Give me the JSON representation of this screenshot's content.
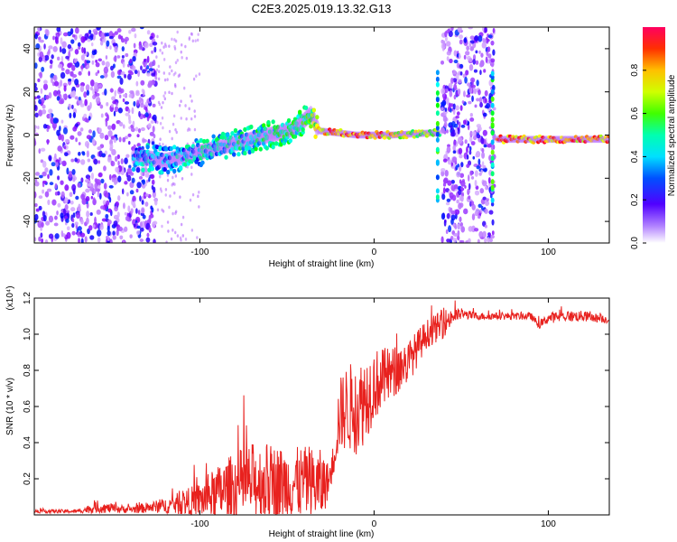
{
  "title": "C2E3.2025.019.13.32.G13",
  "colors": {
    "snr_line": "#e8211e",
    "spectral_low": "#7f00ff",
    "spectral_mid": "#00e0a0",
    "spectral_high": "#ff0030"
  },
  "chart_data": [
    {
      "type": "heatmap",
      "title": "C2E3.2025.019.13.32.G13",
      "xlabel": "Height of straight line (km)",
      "ylabel": "Frequency (Hz)",
      "xlim": [
        -195,
        135
      ],
      "ylim": [
        -50,
        50
      ],
      "x_ticks": [
        -100,
        0,
        100
      ],
      "x_tick_labels": [
        "-100",
        "0",
        "100"
      ],
      "y_ticks": [
        -40,
        -20,
        0,
        20,
        40
      ],
      "y_tick_labels": [
        "-40",
        "-20",
        "0",
        "20",
        "40"
      ],
      "colorbar": {
        "label": "Normalized spectral amplitude",
        "range": [
          0,
          1
        ],
        "ticks": [
          0.0,
          0.2,
          0.4,
          0.6,
          0.8
        ],
        "tick_labels": [
          "0.0",
          "0.2",
          "0.4",
          "0.6",
          "0.8"
        ],
        "colormap": "rainbow"
      },
      "noise_regions_km": [
        [
          -195,
          -125
        ],
        [
          39,
          69
        ]
      ],
      "ridge": [
        {
          "x": -135,
          "y": -10,
          "amplitude": 0.35
        },
        {
          "x": -120,
          "y": -12,
          "amplitude": 0.35
        },
        {
          "x": -100,
          "y": -8,
          "amplitude": 0.4
        },
        {
          "x": -80,
          "y": -4,
          "amplitude": 0.45
        },
        {
          "x": -60,
          "y": 0,
          "amplitude": 0.5
        },
        {
          "x": -45,
          "y": 3,
          "amplitude": 0.5
        },
        {
          "x": -36,
          "y": 10,
          "amplitude": 0.55
        },
        {
          "x": -32,
          "y": 2,
          "amplitude": 0.85
        },
        {
          "x": -10,
          "y": 0,
          "amplitude": 0.9
        },
        {
          "x": 10,
          "y": 0,
          "amplitude": 0.8
        },
        {
          "x": 34,
          "y": 1,
          "amplitude": 0.6
        },
        {
          "x": 72,
          "y": -2,
          "amplitude": 0.9
        },
        {
          "x": 100,
          "y": -2,
          "amplitude": 0.9
        },
        {
          "x": 135,
          "y": -2,
          "amplitude": 0.85
        }
      ]
    },
    {
      "type": "line",
      "xlabel": "Height of straight line (km)",
      "ylabel": "SNR (10 * v/v)",
      "y_multiplier_label": "(x10⁴)",
      "xlim": [
        -195,
        135
      ],
      "ylim": [
        0,
        1.2
      ],
      "x_ticks": [
        -100,
        0,
        100
      ],
      "x_tick_labels": [
        "-100",
        "0",
        "100"
      ],
      "y_ticks": [
        0.2,
        0.4,
        0.6,
        0.8,
        1.0,
        1.2
      ],
      "y_tick_labels": [
        "0.2",
        "0.4",
        "0.6",
        "0.8",
        "1.0",
        "1.2"
      ],
      "series": [
        {
          "color": "#e8211e",
          "x": [
            -195,
            -170,
            -160,
            -140,
            -120,
            -100,
            -90,
            -80,
            -70,
            -60,
            -50,
            -40,
            -30,
            -25,
            -20,
            -15,
            -10,
            -5,
            0,
            10,
            20,
            30,
            40,
            45,
            50,
            60,
            70,
            80,
            90,
            95,
            100,
            110,
            120,
            135
          ],
          "y": [
            0.02,
            0.02,
            0.04,
            0.03,
            0.05,
            0.08,
            0.12,
            0.15,
            0.18,
            0.18,
            0.17,
            0.18,
            0.16,
            0.2,
            0.55,
            0.6,
            0.58,
            0.65,
            0.72,
            0.78,
            0.85,
            1.0,
            1.06,
            1.1,
            1.11,
            1.1,
            1.1,
            1.1,
            1.1,
            1.05,
            1.09,
            1.1,
            1.1,
            1.08
          ],
          "noise_amplitude": [
            0.01,
            0.01,
            0.03,
            0.02,
            0.04,
            0.1,
            0.15,
            0.2,
            0.22,
            0.22,
            0.2,
            0.2,
            0.2,
            0.06,
            0.2,
            0.25,
            0.25,
            0.25,
            0.2,
            0.15,
            0.12,
            0.08,
            0.08,
            0.05,
            0.03,
            0.02,
            0.02,
            0.02,
            0.02,
            0.02,
            0.03,
            0.03,
            0.03,
            0.02
          ]
        }
      ]
    }
  ]
}
